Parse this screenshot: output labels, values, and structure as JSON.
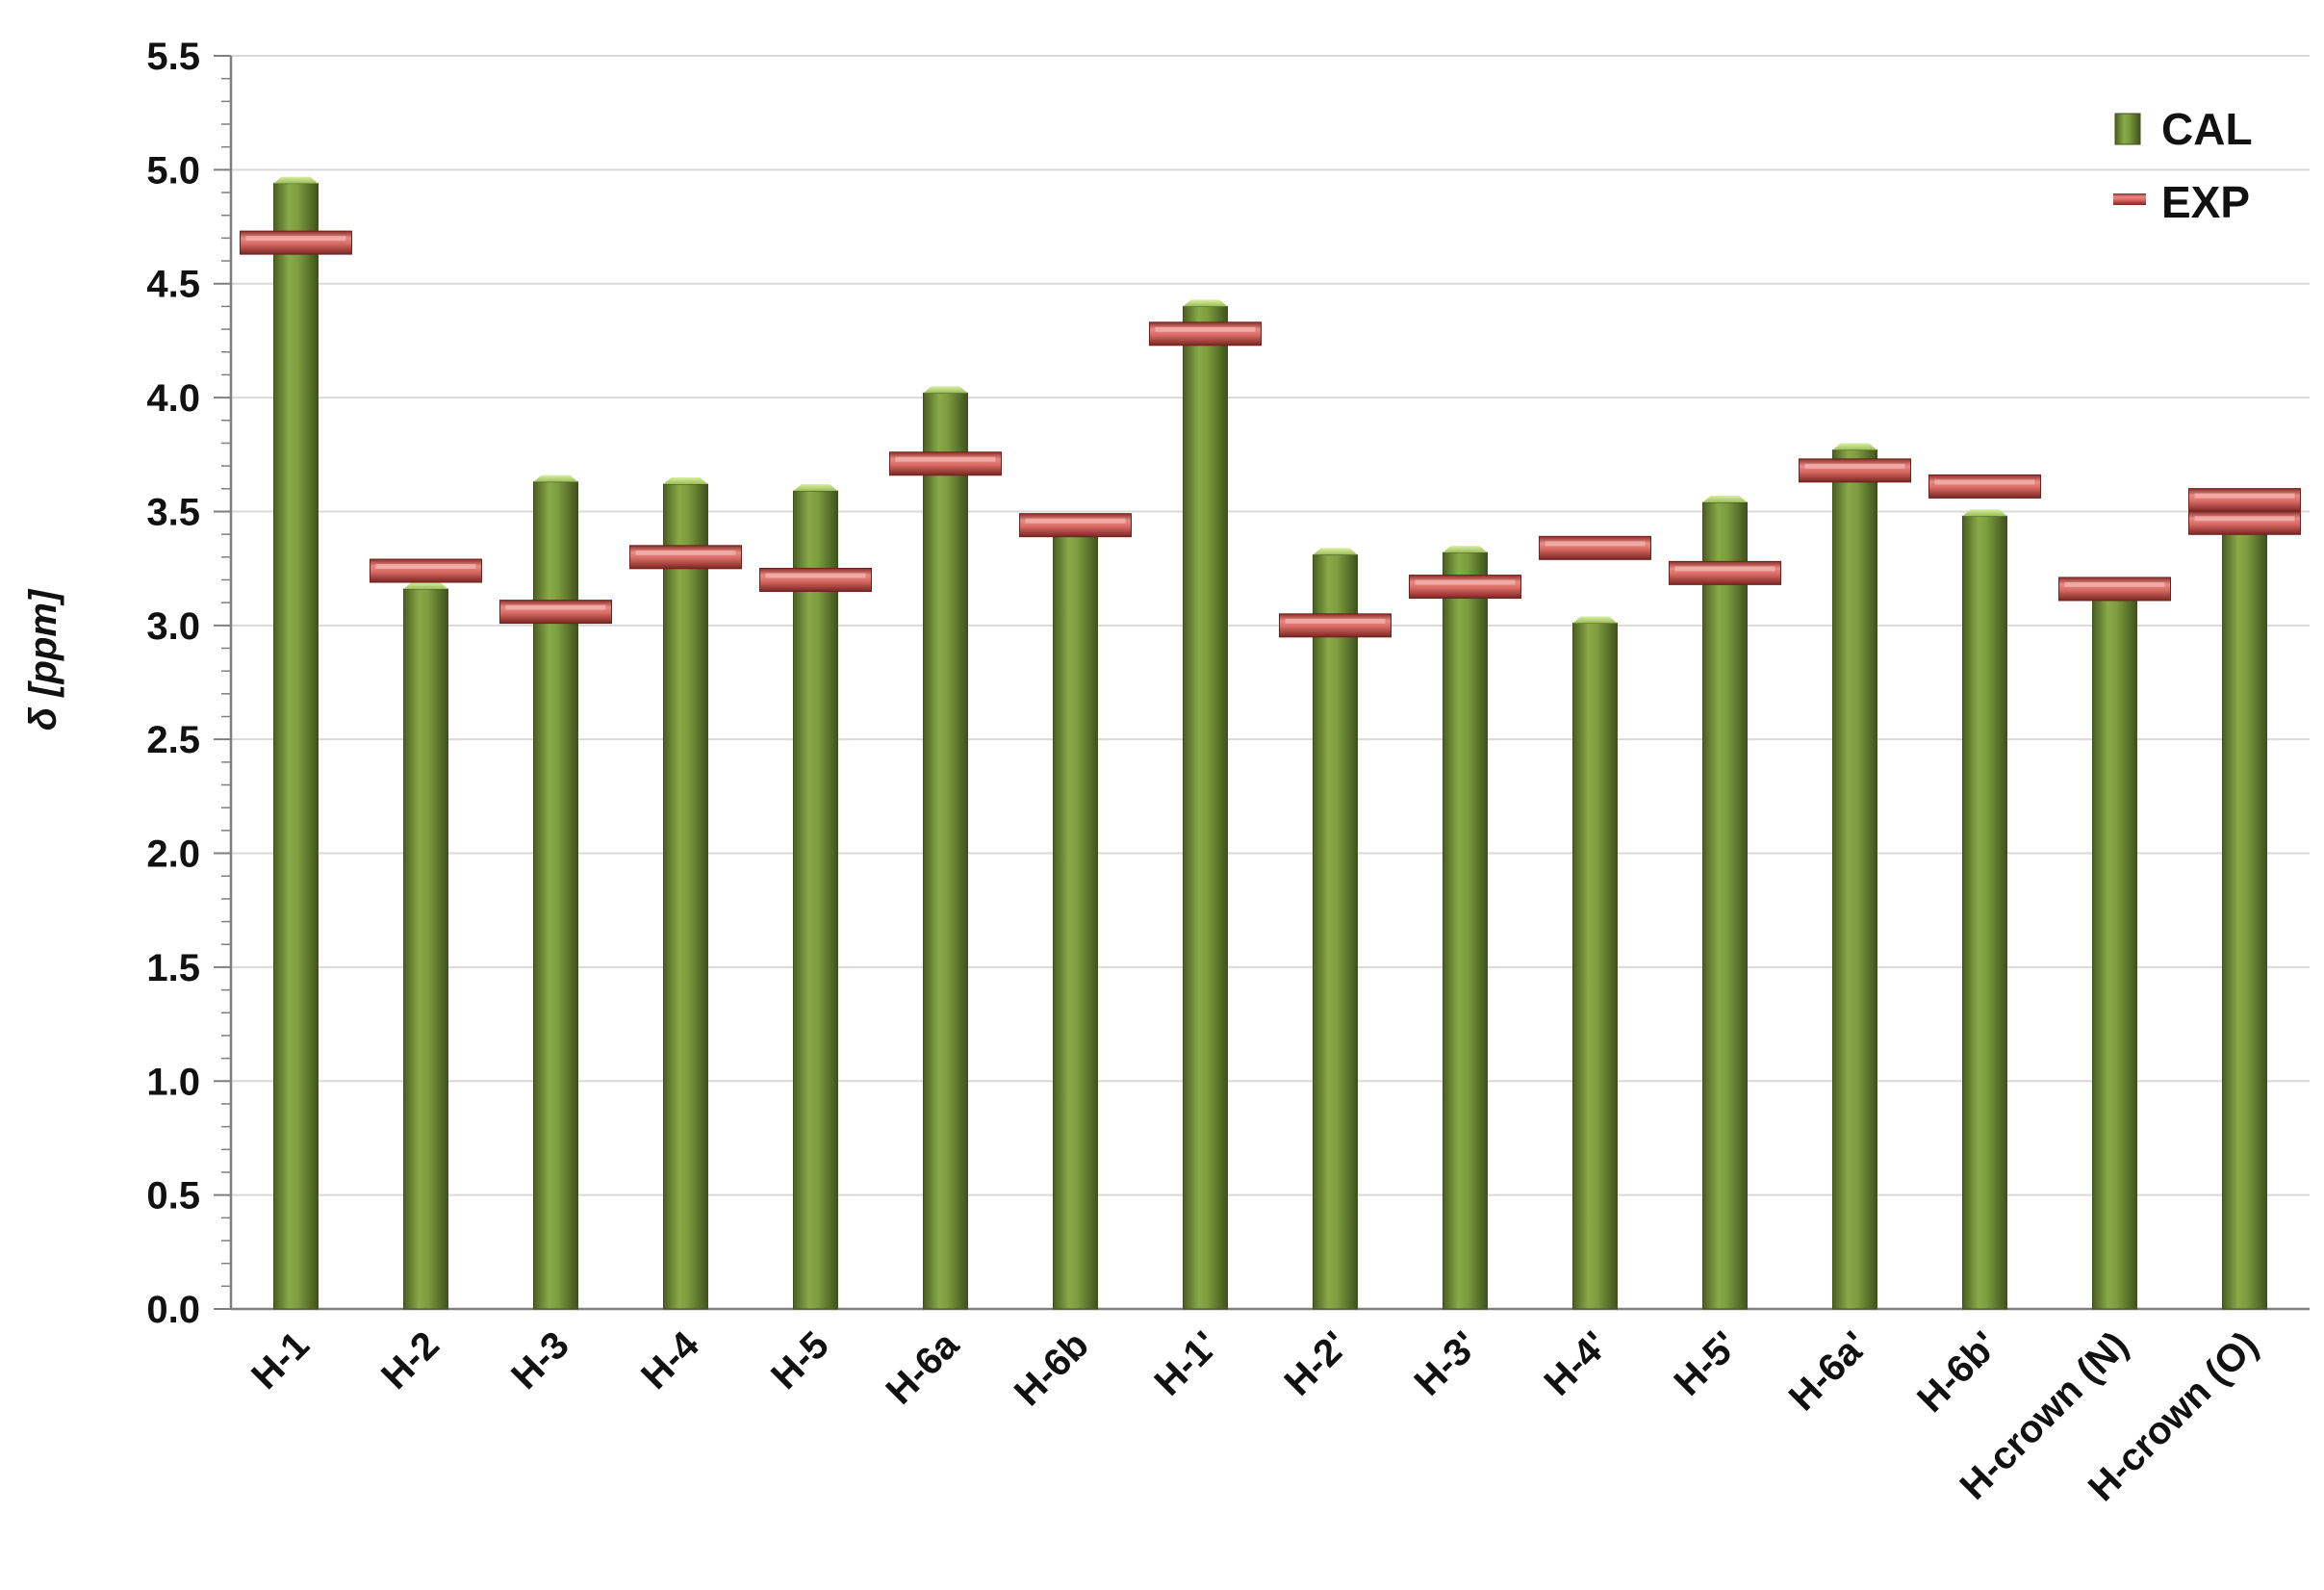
{
  "chart_data": {
    "type": "bar",
    "title": "",
    "xlabel": "",
    "ylabel": "δ [ppm]",
    "ylim": [
      0,
      5.5
    ],
    "yticks": [
      "0.0",
      "0.5",
      "1.0",
      "1.5",
      "2.0",
      "2.5",
      "3.0",
      "3.5",
      "4.0",
      "4.5",
      "5.0",
      "5.5"
    ],
    "grid": "horizontal",
    "legend_position": "top-right",
    "categories": [
      "H-1",
      "H-2",
      "H-3",
      "H-4",
      "H-5",
      "H-6a",
      "H-6b",
      "H-1'",
      "H-2'",
      "H-3'",
      "H-4'",
      "H-5'",
      "H-6a'",
      "H-6b'",
      "H-crown (N)",
      "H-crown (O)"
    ],
    "series": [
      {
        "name": "CAL",
        "style": "bar",
        "color": "#77933c",
        "values": [
          4.94,
          3.16,
          3.63,
          3.62,
          3.59,
          4.02,
          3.42,
          4.4,
          3.31,
          3.32,
          3.01,
          3.54,
          3.77,
          3.48,
          3.12,
          3.46
        ]
      },
      {
        "name": "EXP",
        "style": "marker",
        "color": "#c0504d",
        "values": [
          4.68,
          3.24,
          3.06,
          3.3,
          3.2,
          3.71,
          3.44,
          4.28,
          3.0,
          3.17,
          3.34,
          3.23,
          3.68,
          3.61,
          3.16,
          [
            3.55,
            3.45
          ]
        ]
      }
    ]
  }
}
